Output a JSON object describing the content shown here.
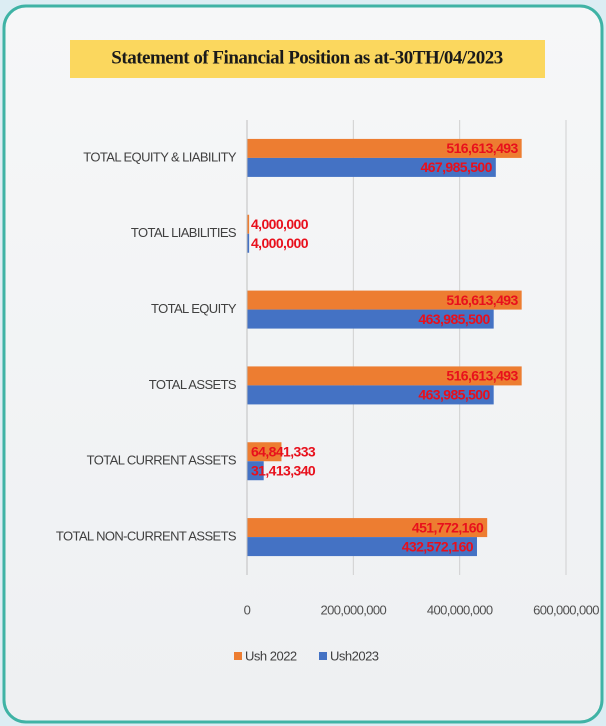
{
  "chart_data": {
    "type": "bar",
    "orientation": "horizontal",
    "title": "Statement of Financial Position as at-30TH/04/2023",
    "categories": [
      "TOTAL EQUITY & LIABILITY",
      "TOTAL LIABILITIES",
      "TOTAL EQUITY",
      "TOTAL ASSETS",
      "TOTAL CURRENT ASSETS",
      "TOTAL NON-CURRENT ASSETS"
    ],
    "series": [
      {
        "name": "Ush 2022",
        "color": "#ed7d31",
        "values": [
          516613493,
          4000000,
          516613493,
          516613493,
          64841333,
          451772160
        ],
        "value_labels": [
          "516,613,493",
          "4,000,000",
          "516,613,493",
          "516,613,493",
          "64,841,333",
          "451,772,160"
        ]
      },
      {
        "name": "Ush2023",
        "color": "#4472c4",
        "values": [
          467985500,
          4000000,
          463985500,
          463985500,
          31413340,
          432572160
        ],
        "value_labels": [
          "467,985,500",
          "4,000,000",
          "463,985,500",
          "463,985,500",
          "31,413,340",
          "432,572,160"
        ]
      }
    ],
    "xlim": [
      0,
      600000000
    ],
    "xticks": [
      0,
      {
        "value": 200000000,
        "label": "200,000,000"
      },
      {
        "value": 400000000,
        "label": "400,000,000"
      },
      {
        "value": 600000000,
        "label": "600,000,000"
      }
    ],
    "grid": true,
    "legend": "bottom"
  }
}
